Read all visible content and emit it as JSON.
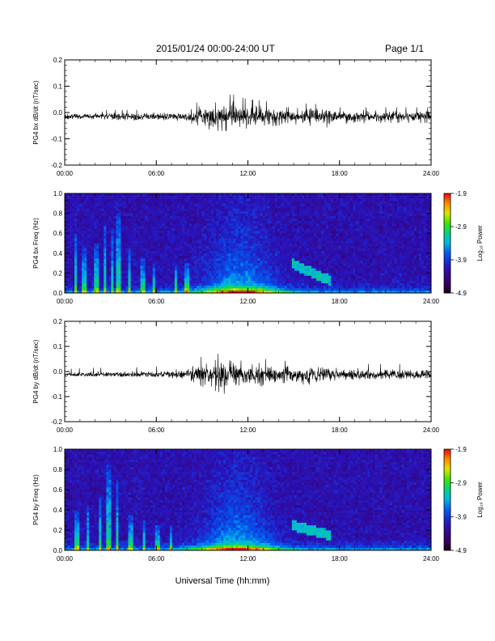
{
  "header": {
    "title": "2015/01/24  00:00-24:00 UT",
    "page": "Page 1/1"
  },
  "colorscale": {
    "ticks": [
      "-1.9",
      "-2.9",
      "-3.9",
      "-4.9"
    ],
    "label": "Log₁₀ Power",
    "min": -4.9,
    "max": -1.9
  },
  "xlabel": "Universal Time (hh:mm)",
  "x_ticks": [
    "00:00",
    "06:00",
    "12:00",
    "18:00",
    "24:00"
  ],
  "chart_data": [
    {
      "type": "line",
      "ylabel": "PG4 bx dB/dt (nT/sec)",
      "xlim": [
        0,
        24
      ],
      "ylim": [
        -0.2,
        0.2
      ],
      "yticks": [
        "0.2",
        "0.1",
        "0.0",
        "-0.1",
        "-0.2"
      ],
      "x_ticks": [
        "00:00",
        "06:00",
        "12:00",
        "18:00",
        "24:00"
      ],
      "envelope": {
        "x": [
          0,
          2,
          4,
          6,
          7,
          8,
          9,
          10,
          11,
          11.5,
          12,
          13,
          14,
          15,
          16,
          17,
          18,
          20,
          22,
          24
        ],
        "ymax": [
          0.005,
          0.01,
          0.01,
          0.01,
          0.012,
          0.015,
          0.05,
          0.06,
          0.07,
          0.06,
          0.05,
          0.045,
          0.04,
          0.03,
          0.035,
          0.03,
          0.02,
          0.02,
          0.02,
          0.02
        ],
        "ymin": [
          -0.025,
          -0.025,
          -0.03,
          -0.03,
          -0.03,
          -0.035,
          -0.06,
          -0.07,
          -0.07,
          -0.065,
          -0.06,
          -0.055,
          -0.05,
          -0.045,
          -0.05,
          -0.06,
          -0.045,
          -0.04,
          -0.04,
          -0.04
        ]
      }
    },
    {
      "type": "heatmap",
      "ylabel": "PG4 bx Freq (Hz)",
      "xlim": [
        0,
        24
      ],
      "ylim": [
        0,
        1.0
      ],
      "yticks": [
        "1.0",
        "0.8",
        "0.6",
        "0.4",
        "0.2",
        "0.0"
      ],
      "x_ticks": [
        "00:00",
        "06:00",
        "12:00",
        "18:00",
        "24:00"
      ],
      "features": {
        "spikes": [
          {
            "x": 0.7,
            "top": 0.6
          },
          {
            "x": 1.3,
            "top": 0.45
          },
          {
            "x": 2.1,
            "top": 0.5
          },
          {
            "x": 2.6,
            "top": 0.7
          },
          {
            "x": 3.1,
            "top": 0.65
          },
          {
            "x": 3.5,
            "top": 0.8
          },
          {
            "x": 4.2,
            "top": 0.45
          },
          {
            "x": 5.1,
            "top": 0.35
          },
          {
            "x": 5.8,
            "top": 0.3
          },
          {
            "x": 7.3,
            "top": 0.3
          },
          {
            "x": 8.0,
            "top": 0.3
          }
        ],
        "peak_time": 11.5,
        "band": {
          "x_start": 14.8,
          "x_end": 17.5,
          "y_start": 0.3,
          "y_end": 0.12
        }
      }
    },
    {
      "type": "line",
      "ylabel": "PG4 by dB/dt (nT/sec)",
      "xlim": [
        0,
        24
      ],
      "ylim": [
        -0.2,
        0.2
      ],
      "yticks": [
        "0.2",
        "0.1",
        "0.0",
        "-0.1",
        "-0.2"
      ],
      "x_ticks": [
        "00:00",
        "06:00",
        "12:00",
        "18:00",
        "24:00"
      ],
      "envelope": {
        "x": [
          0,
          2,
          4,
          6,
          7,
          8,
          9,
          10,
          11,
          11.5,
          12,
          13,
          14,
          15,
          16,
          17,
          18,
          20,
          22,
          24
        ],
        "ymax": [
          0.01,
          0.015,
          0.015,
          0.02,
          0.02,
          0.03,
          0.06,
          0.07,
          0.08,
          0.07,
          0.05,
          0.05,
          0.045,
          0.04,
          0.04,
          0.035,
          0.03,
          0.03,
          0.03,
          0.025
        ],
        "ymin": [
          -0.015,
          -0.02,
          -0.02,
          -0.02,
          -0.025,
          -0.03,
          -0.06,
          -0.08,
          -0.1,
          -0.08,
          -0.06,
          -0.06,
          -0.05,
          -0.04,
          -0.06,
          -0.04,
          -0.035,
          -0.03,
          -0.03,
          -0.03
        ]
      }
    },
    {
      "type": "heatmap",
      "ylabel": "PG4 by Freq (Hz)",
      "xlim": [
        0,
        24
      ],
      "ylim": [
        0,
        1.0
      ],
      "yticks": [
        "1.0",
        "0.8",
        "0.6",
        "0.4",
        "0.2",
        "0.0"
      ],
      "x_ticks": [
        "00:00",
        "06:00",
        "12:00",
        "18:00",
        "24:00"
      ],
      "features": {
        "spikes": [
          {
            "x": 0.8,
            "top": 0.4
          },
          {
            "x": 1.5,
            "top": 0.45
          },
          {
            "x": 2.3,
            "top": 0.55
          },
          {
            "x": 2.9,
            "top": 0.85
          },
          {
            "x": 3.4,
            "top": 0.7
          },
          {
            "x": 4.3,
            "top": 0.35
          },
          {
            "x": 5.2,
            "top": 0.3
          },
          {
            "x": 6.1,
            "top": 0.25
          },
          {
            "x": 7.0,
            "top": 0.25
          }
        ],
        "peak_time": 11.3,
        "band": {
          "x_start": 14.8,
          "x_end": 17.5,
          "y_start": 0.25,
          "y_end": 0.15
        }
      }
    }
  ]
}
